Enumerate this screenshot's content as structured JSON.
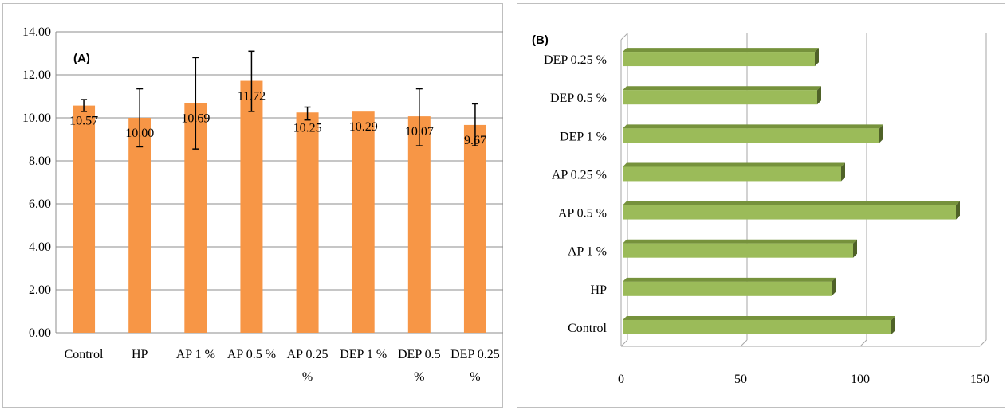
{
  "chart_data": [
    {
      "type": "bar",
      "panel_label": "(A)",
      "categories": [
        "Control",
        "HP",
        "AP 1 %",
        "AP 0.5 %",
        "AP 0.25 %",
        "DEP 1 %",
        "DEP 0.5 %",
        "DEP 0.25 %"
      ],
      "category_lines": [
        [
          "Control"
        ],
        [
          "HP"
        ],
        [
          "AP 1 %"
        ],
        [
          "AP 0.5 %"
        ],
        [
          "AP 0.25",
          "%"
        ],
        [
          "DEP 1 %"
        ],
        [
          "DEP 0.5",
          "%"
        ],
        [
          "DEP 0.25",
          "%"
        ]
      ],
      "values": [
        10.57,
        10.0,
        10.69,
        11.72,
        10.25,
        10.29,
        10.07,
        9.67
      ],
      "data_labels": [
        "10.57",
        "10.00",
        "10.69",
        "11.72",
        "10.25",
        "10.29",
        "10.07",
        "9.67"
      ],
      "error_low": [
        10.3,
        8.65,
        8.55,
        10.3,
        9.9,
        10.29,
        8.7,
        8.7
      ],
      "error_high": [
        10.85,
        11.35,
        12.8,
        13.1,
        10.5,
        10.29,
        11.35,
        10.65
      ],
      "ylim": [
        0,
        14
      ],
      "yticks": [
        "0.00",
        "2.00",
        "4.00",
        "6.00",
        "8.00",
        "10.00",
        "12.00",
        "14.00"
      ],
      "color": "#f79646",
      "grid": true,
      "legend": "none"
    },
    {
      "type": "bar",
      "orientation": "horizontal",
      "panel_label": "(B)",
      "categories": [
        "Control",
        "HP",
        "AP 1 %",
        "AP 0.5 %",
        "AP 0.25 %",
        "DEP 1 %",
        "DEP 0.5 %",
        "DEP 0.25 %"
      ],
      "values": [
        113,
        88,
        97,
        140,
        92,
        108,
        82,
        81
      ],
      "xlim": [
        0,
        150
      ],
      "xticks": [
        "0",
        "50",
        "100",
        "150"
      ],
      "color": "#9bbb59",
      "grid": true,
      "legend": "none"
    }
  ]
}
